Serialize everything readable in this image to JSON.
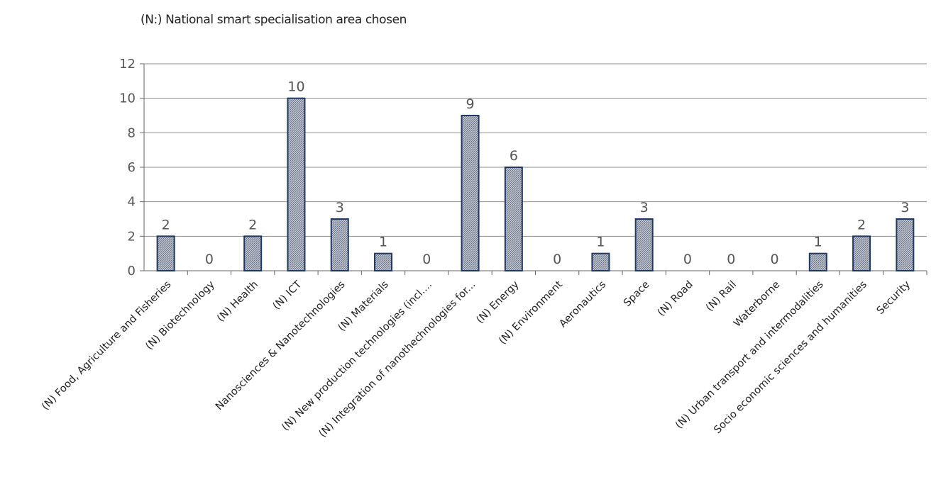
{
  "chart_data": {
    "type": "bar",
    "title": "(N:) National smart specialisation area chosen",
    "categories": [
      "(N) Food, Agriculture and Fisheries",
      "(N) Biotechnology",
      "(N) Health",
      "(N) ICT",
      "Nanosciences & Nanotechnologies",
      "(N) Materials",
      "(N) New production technologies (incl....",
      "(N) Integration of nanothechnologies for...",
      "(N) Energy",
      "(N) Environment",
      "Aeronautics",
      "Space",
      "(N) Road",
      "(N) Rail",
      "Waterborne",
      "(N) Urban transport and intermodalities",
      "Socio economic sciences and humanities",
      "Security"
    ],
    "values": [
      2,
      0,
      2,
      10,
      3,
      1,
      0,
      9,
      6,
      0,
      1,
      3,
      0,
      0,
      0,
      1,
      2,
      3
    ],
    "ylim": [
      0,
      12
    ],
    "yticks": [
      0,
      2,
      4,
      6,
      8,
      10,
      12
    ],
    "grid": true,
    "data_labels": true,
    "colors": {
      "bar_fill": "#b8bfca",
      "bar_stroke": "#1f3864",
      "grid": "#8c8c8c"
    }
  }
}
